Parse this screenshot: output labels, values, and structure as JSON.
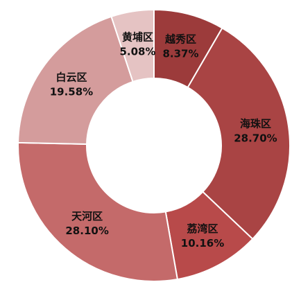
{
  "chart_data": {
    "type": "donut",
    "categories": [
      "越秀区",
      "海珠区",
      "荔湾区",
      "天河区",
      "白云区",
      "黄埔区"
    ],
    "values": [
      8.37,
      28.7,
      10.16,
      28.1,
      19.58,
      5.08
    ],
    "value_labels": [
      "8.37%",
      "28.70%",
      "10.16%",
      "28.10%",
      "19.58%",
      "5.08%"
    ],
    "colors": [
      "#9c3b3b",
      "#a94444",
      "#b84a4a",
      "#c46a6a",
      "#d49c9c",
      "#e5c3c3"
    ]
  }
}
